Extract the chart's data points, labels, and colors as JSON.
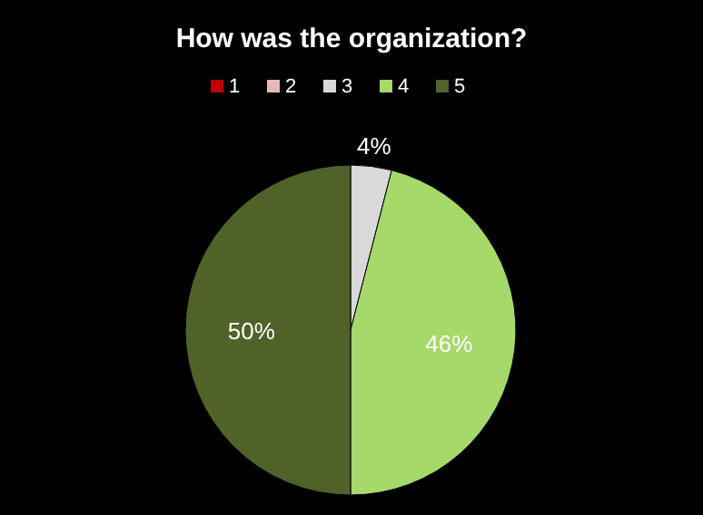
{
  "chart_data": {
    "type": "pie",
    "title": "How was the organization?",
    "categories": [
      "1",
      "2",
      "3",
      "4",
      "5"
    ],
    "values": [
      0,
      0,
      4,
      46,
      50
    ],
    "colors": [
      "#c00000",
      "#e6b9b8",
      "#d9d9d9",
      "#a6d86a",
      "#4f6228"
    ],
    "value_labels": [
      null,
      null,
      "4%",
      "46%",
      "50%"
    ],
    "legend": "top"
  }
}
